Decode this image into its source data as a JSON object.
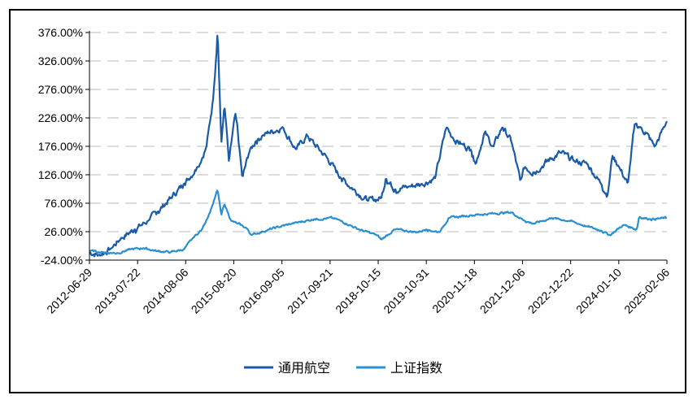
{
  "chart_data": {
    "type": "line",
    "title": "",
    "xlabel": "",
    "ylabel": "",
    "y_tick_labels": [
      "-24.00%",
      "26.00%",
      "76.00%",
      "126.00%",
      "176.00%",
      "226.00%",
      "276.00%",
      "326.00%",
      "376.00%"
    ],
    "ylim": [
      -24,
      376
    ],
    "x_tick_labels": [
      "2012-06-29",
      "2013-07-22",
      "2014-08-06",
      "2015-08-20",
      "2016-09-05",
      "2017-09-21",
      "2018-10-15",
      "2019-10-31",
      "2020-11-18",
      "2021-12-06",
      "2022-12-22",
      "2024-01-10",
      "2025-02-06"
    ],
    "x_range": [
      2012.49,
      2025.37
    ],
    "grid": "horizontal-dashed",
    "legend_position": "bottom",
    "series": [
      {
        "name": "通用航空",
        "color": "#1a5ba8",
        "x": [
          2012.49,
          2012.7,
          2012.95,
          2013.2,
          2013.5,
          2013.8,
          2014.0,
          2014.3,
          2014.6,
          2014.9,
          2015.1,
          2015.25,
          2015.35,
          2015.43,
          2015.5,
          2015.6,
          2015.75,
          2015.9,
          2016.05,
          2016.2,
          2016.35,
          2016.5,
          2016.8,
          2017.1,
          2017.35,
          2017.5,
          2017.8,
          2018.1,
          2018.4,
          2018.7,
          2019.0,
          2019.1,
          2019.3,
          2019.6,
          2019.9,
          2020.2,
          2020.45,
          2020.6,
          2020.8,
          2021.0,
          2021.1,
          2021.3,
          2021.5,
          2021.7,
          2021.9,
          2022.1,
          2022.2,
          2022.4,
          2022.7,
          2023.0,
          2023.3,
          2023.6,
          2023.9,
          2024.05,
          2024.15,
          2024.3,
          2024.5,
          2024.65,
          2024.75,
          2024.9,
          2025.1,
          2025.37
        ],
        "values": [
          -10,
          -15,
          -5,
          15,
          30,
          45,
          60,
          85,
          110,
          140,
          175,
          260,
          380,
          180,
          250,
          150,
          235,
          120,
          165,
          185,
          195,
          200,
          210,
          170,
          195,
          180,
          155,
          120,
          100,
          80,
          85,
          120,
          100,
          105,
          110,
          120,
          210,
          190,
          180,
          170,
          145,
          200,
          175,
          210,
          185,
          115,
          140,
          130,
          150,
          165,
          150,
          145,
          110,
          90,
          160,
          140,
          110,
          215,
          210,
          200,
          175,
          220
        ]
      },
      {
        "name": "上证指数",
        "color": "#2a8fd0",
        "x": [
          2012.49,
          2012.8,
          2013.1,
          2013.4,
          2013.7,
          2014.0,
          2014.3,
          2014.6,
          2014.8,
          2015.0,
          2015.2,
          2015.35,
          2015.43,
          2015.5,
          2015.65,
          2015.8,
          2016.0,
          2016.1,
          2016.5,
          2017.0,
          2017.5,
          2017.9,
          2018.1,
          2018.5,
          2018.9,
          2019.0,
          2019.3,
          2019.8,
          2020.0,
          2020.3,
          2020.5,
          2021.0,
          2021.5,
          2021.9,
          2022.2,
          2022.4,
          2022.8,
          2023.2,
          2023.6,
          2023.9,
          2024.1,
          2024.4,
          2024.7,
          2024.75,
          2025.0,
          2025.37
        ],
        "values": [
          -8,
          -10,
          -12,
          -5,
          -3,
          -8,
          -10,
          -5,
          15,
          30,
          65,
          100,
          55,
          75,
          45,
          40,
          32,
          20,
          30,
          40,
          48,
          50,
          45,
          30,
          20,
          12,
          30,
          25,
          30,
          25,
          50,
          55,
          58,
          60,
          45,
          40,
          50,
          45,
          35,
          28,
          20,
          38,
          30,
          52,
          48,
          50
        ]
      }
    ]
  }
}
